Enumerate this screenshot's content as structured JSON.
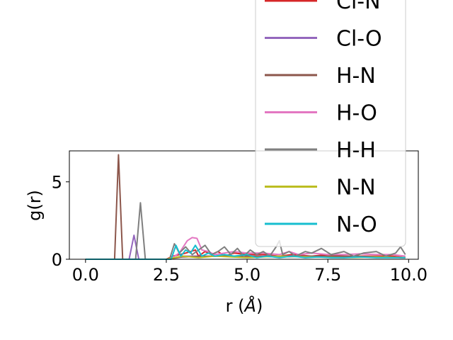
{
  "chart_data": {
    "type": "line",
    "xlabel_main": "r (",
    "xlabel_unit": "Å",
    "xlabel_close": ")",
    "ylabel": "g(r)",
    "xlim": [
      -0.5,
      10.3
    ],
    "ylim": [
      0,
      7.0
    ],
    "x_ticks": [
      {
        "value": 0.0,
        "label": "0.0"
      },
      {
        "value": 2.5,
        "label": "2.5"
      },
      {
        "value": 5.0,
        "label": "5.0"
      },
      {
        "value": 7.5,
        "label": "7.5"
      },
      {
        "value": 10.0,
        "label": "10.0"
      }
    ],
    "y_ticks": [
      {
        "value": 0,
        "label": "0"
      },
      {
        "value": 5,
        "label": "5"
      }
    ],
    "legend_position": "upper-right",
    "series": [
      {
        "name": "Cl-N",
        "color": "#d62728",
        "x": [
          0,
          2.5,
          2.7,
          3.1,
          3.4,
          3.5,
          3.7,
          3.9,
          4.1,
          4.3,
          4.6,
          5.0,
          5.5,
          6.0,
          6.4,
          7.0,
          7.5,
          8.0,
          8.5,
          9.0,
          9.5,
          9.9
        ],
        "y": [
          0,
          0,
          0.2,
          0.4,
          0.6,
          0.2,
          0.5,
          0.3,
          0.5,
          0.2,
          0.4,
          0.3,
          0.3,
          0.2,
          0.3,
          0.2,
          0.3,
          0.2,
          0.2,
          0.2,
          0.2,
          0.1
        ]
      },
      {
        "name": "Cl-O",
        "color": "#9467bd",
        "x": [
          0,
          1.35,
          1.5,
          1.65,
          2.5,
          3.0,
          4.0,
          5.0,
          6.0,
          7.0,
          8.0,
          9.0,
          9.9
        ],
        "y": [
          0,
          0,
          1.55,
          0,
          0,
          0.2,
          0.2,
          0.2,
          0.2,
          0.2,
          0.15,
          0.15,
          0.1
        ]
      },
      {
        "name": "H-N",
        "color": "#8c564b",
        "x": [
          0,
          0.9,
          1.02,
          1.15,
          2.5,
          3.0,
          4.0,
          5.0,
          6.0,
          7.0,
          8.0,
          9.0,
          9.9
        ],
        "y": [
          0,
          0,
          6.75,
          0,
          0,
          0.15,
          0.2,
          0.2,
          0.15,
          0.2,
          0.2,
          0.15,
          0.1
        ]
      },
      {
        "name": "H-O",
        "color": "#e377c2",
        "x": [
          0,
          2.6,
          2.9,
          3.15,
          3.3,
          3.45,
          3.6,
          3.8,
          4.0,
          4.3,
          4.6,
          5.0,
          5.5,
          6.0,
          6.3,
          6.6,
          7.0,
          7.5,
          8.0,
          8.5,
          9.0,
          9.5,
          9.9
        ],
        "y": [
          0,
          0,
          0.4,
          1.2,
          1.4,
          1.35,
          0.6,
          0.5,
          0.3,
          0.4,
          0.5,
          0.4,
          0.4,
          0.3,
          0.5,
          0.3,
          0.4,
          0.3,
          0.3,
          0.35,
          0.3,
          0.3,
          0.2
        ]
      },
      {
        "name": "H-H",
        "color": "#7f7f7f",
        "x": [
          0,
          1.55,
          1.7,
          1.85,
          2.6,
          2.75,
          2.9,
          3.1,
          3.3,
          3.5,
          3.7,
          3.9,
          4.1,
          4.3,
          4.5,
          4.7,
          4.9,
          5.1,
          5.3,
          5.5,
          5.7,
          5.9,
          6.0,
          6.1,
          6.3,
          6.5,
          6.8,
          7.0,
          7.3,
          7.6,
          8.0,
          8.3,
          8.6,
          9.0,
          9.3,
          9.6,
          9.75,
          9.9
        ],
        "y": [
          0,
          0,
          3.65,
          0,
          0,
          1.0,
          0.4,
          0.8,
          0.3,
          0.6,
          0.9,
          0.3,
          0.5,
          0.8,
          0.3,
          0.7,
          0.2,
          0.6,
          0.3,
          0.5,
          0.2,
          0.8,
          1.2,
          0.3,
          0.5,
          0.2,
          0.5,
          0.4,
          0.7,
          0.3,
          0.5,
          0.2,
          0.4,
          0.5,
          0.2,
          0.4,
          0.8,
          0.3
        ]
      },
      {
        "name": "N-N",
        "color": "#bcbd22",
        "x": [
          0,
          2.5,
          3.0,
          3.5,
          4.0,
          5.0,
          6.0,
          7.0,
          8.0,
          9.0,
          9.9
        ],
        "y": [
          0,
          0,
          0.2,
          0.1,
          0.2,
          0.1,
          0.2,
          0.15,
          0.1,
          0.15,
          0.1
        ]
      },
      {
        "name": "N-O",
        "color": "#17becf",
        "x": [
          0,
          2.65,
          2.8,
          2.95,
          3.1,
          3.25,
          3.4,
          3.6,
          3.8,
          4.0,
          4.3,
          4.6,
          5.0,
          5.3,
          5.6,
          6.0,
          6.4,
          6.8,
          7.2,
          7.6,
          8.0,
          8.5,
          9.0,
          9.5,
          9.9
        ],
        "y": [
          0,
          0,
          0.9,
          0.2,
          0.6,
          0.4,
          0.9,
          0.2,
          0.4,
          0.2,
          0.3,
          0.2,
          0.3,
          0.1,
          0.2,
          0.1,
          0.2,
          0.1,
          0.15,
          0.1,
          0.1,
          0.15,
          0.1,
          0.1,
          0.1
        ]
      }
    ]
  }
}
